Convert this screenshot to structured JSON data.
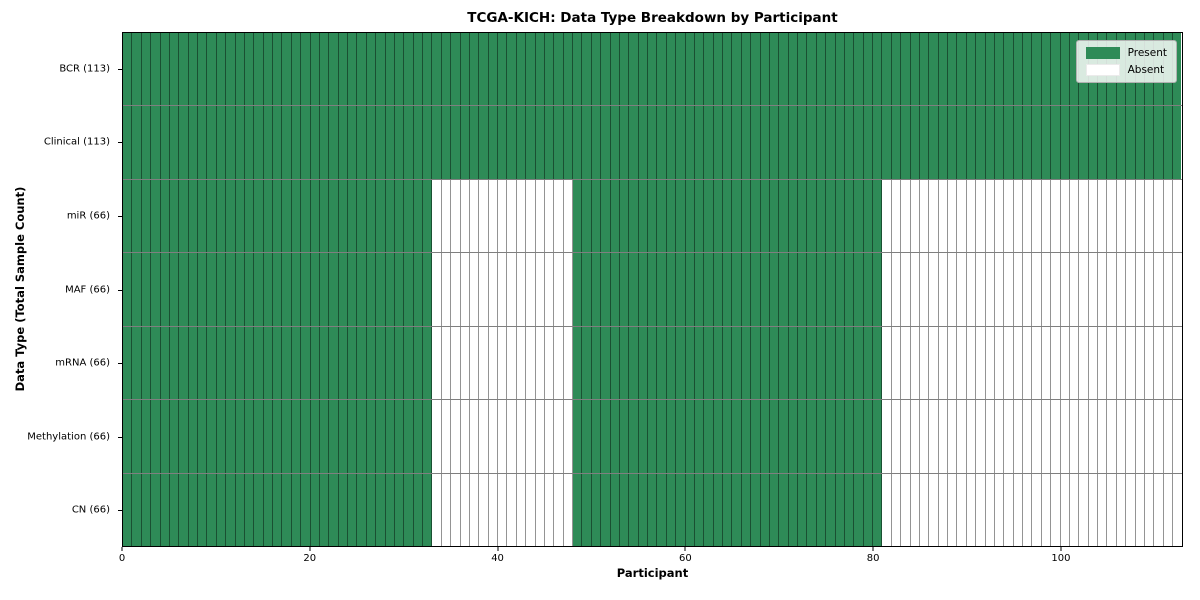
{
  "chart_data": {
    "type": "heatmap",
    "title": "TCGA-KICH: Data Type Breakdown by Participant",
    "xlabel": "Participant",
    "ylabel": "Data Type (Total Sample Count)",
    "x_range": [
      0,
      113
    ],
    "x_ticks": [
      0,
      20,
      40,
      60,
      80,
      100
    ],
    "n_participants": 113,
    "colors": {
      "present": "#2e8b57",
      "absent": "#ffffff"
    },
    "rows": [
      {
        "name": "BCR",
        "label": "BCR (113)",
        "total_samples": 113,
        "present_ranges": [
          [
            0,
            113
          ]
        ]
      },
      {
        "name": "Clinical",
        "label": "Clinical (113)",
        "total_samples": 113,
        "present_ranges": [
          [
            0,
            113
          ]
        ]
      },
      {
        "name": "miR",
        "label": "miR (66)",
        "total_samples": 66,
        "present_ranges": [
          [
            0,
            33
          ],
          [
            48,
            81
          ]
        ]
      },
      {
        "name": "MAF",
        "label": "MAF (66)",
        "total_samples": 66,
        "present_ranges": [
          [
            0,
            33
          ],
          [
            48,
            81
          ]
        ]
      },
      {
        "name": "mRNA",
        "label": "mRNA (66)",
        "total_samples": 66,
        "present_ranges": [
          [
            0,
            33
          ],
          [
            48,
            81
          ]
        ]
      },
      {
        "name": "Methylation",
        "label": "Methylation (66)",
        "total_samples": 66,
        "present_ranges": [
          [
            0,
            33
          ],
          [
            48,
            81
          ]
        ]
      },
      {
        "name": "CN",
        "label": "CN (66)",
        "total_samples": 66,
        "present_ranges": [
          [
            0,
            33
          ],
          [
            48,
            81
          ]
        ]
      }
    ],
    "legend": {
      "position": "upper right",
      "items": [
        {
          "label": "Present",
          "color": "#2e8b57"
        },
        {
          "label": "Absent",
          "color": "#ffffff"
        }
      ]
    }
  }
}
